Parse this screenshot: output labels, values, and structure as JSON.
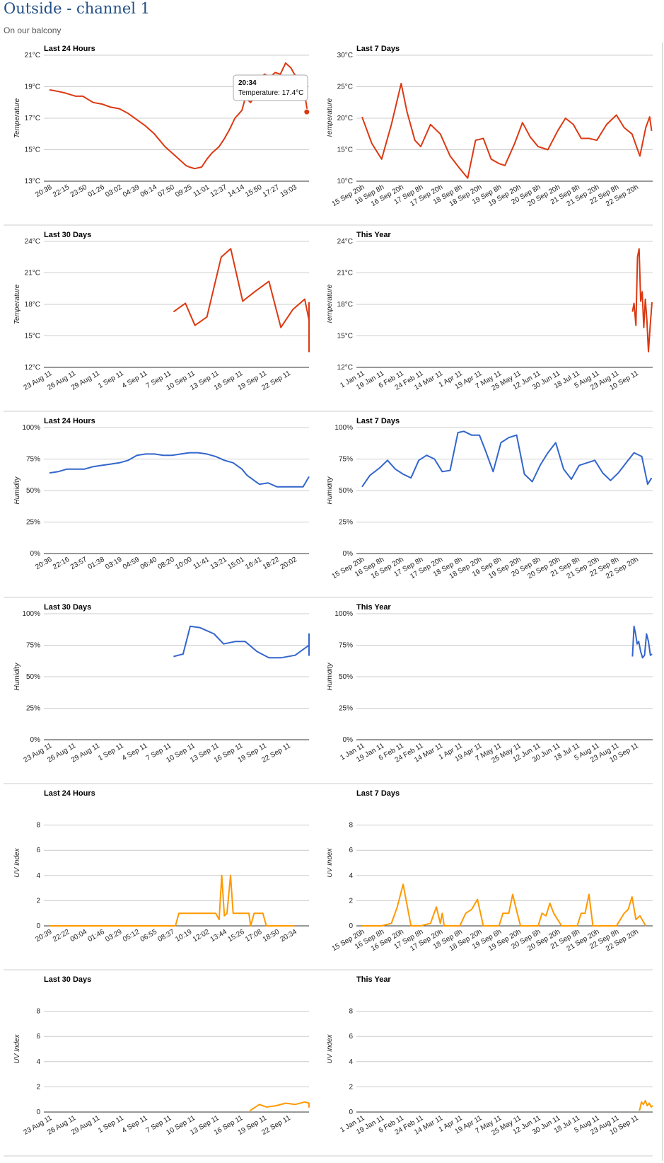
{
  "page": {
    "title": "Outside - channel 1",
    "subtitle": "On our balcony"
  },
  "colors": {
    "temperature": "#dc3912",
    "humidity": "#3366cc",
    "uv": "#ff9900",
    "grid": "#cccccc",
    "axis": "#333333",
    "divider": "#cccccc"
  },
  "chart_data": [
    {
      "type": "line",
      "title": "Last 24 Hours",
      "ylabel": "Temperature",
      "y_ticks": [
        "13°C",
        "15°C",
        "17°C",
        "19°C",
        "21°C"
      ],
      "ylim": [
        13,
        21
      ],
      "x_ticks": [
        "20:38",
        "22:15",
        "23:50",
        "01:26",
        "03:02",
        "04:39",
        "06:14",
        "07:50",
        "09:25",
        "11:01",
        "12:37",
        "14:14",
        "15:50",
        "17:27",
        "19:03"
      ],
      "x": [
        0,
        0.5,
        0.9,
        1.5,
        1.9,
        2.5,
        3,
        3.5,
        4,
        4.5,
        5,
        5.5,
        6,
        6.3,
        6.6,
        7,
        7.4,
        7.8,
        8,
        8.3,
        8.7,
        9,
        9.3,
        9.7,
        10,
        10.3,
        10.6,
        11,
        11.2,
        11.5,
        11.8,
        12,
        12.3,
        12.6,
        12.9,
        13.2,
        13.5,
        13.8,
        14,
        14.3,
        14.6,
        14.75
      ],
      "values": [
        18.8,
        18.7,
        18.6,
        18.4,
        18.4,
        18.0,
        17.9,
        17.7,
        17.6,
        17.3,
        16.9,
        16.5,
        16.0,
        15.6,
        15.2,
        14.8,
        14.4,
        14.0,
        13.9,
        13.8,
        13.9,
        14.4,
        14.8,
        15.2,
        15.7,
        16.3,
        17.0,
        17.5,
        18.3,
        18.0,
        18.5,
        19.5,
        19.8,
        19.6,
        19.9,
        19.8,
        20.5,
        20.2,
        19.8,
        19.5,
        18.5,
        17.4
      ],
      "tooltip": {
        "title": "20:34",
        "text": "Temperature: 17.4°C"
      }
    },
    {
      "type": "line",
      "title": "Last 7 Days",
      "ylabel": "Temperature",
      "y_ticks": [
        "10°C",
        "15°C",
        "20°C",
        "25°C",
        "30°C"
      ],
      "ylim": [
        10,
        30
      ],
      "x_ticks": [
        "15 Sep 20h",
        "16 Sep 8h",
        "16 Sep 20h",
        "17 Sep 8h",
        "17 Sep 20h",
        "18 Sep 8h",
        "18 Sep 20h",
        "19 Sep 8h",
        "19 Sep 20h",
        "20 Sep 8h",
        "20 Sep 20h",
        "21 Sep 8h",
        "21 Sep 20h",
        "22 Sep 8h",
        "22 Sep 20h"
      ],
      "x": [
        0,
        0.5,
        1,
        1.5,
        2,
        2.3,
        2.7,
        3,
        3.5,
        4,
        4.5,
        5,
        5.4,
        5.8,
        6.2,
        6.6,
        7,
        7.3,
        7.8,
        8.2,
        8.6,
        9,
        9.5,
        10,
        10.4,
        10.8,
        11.2,
        11.6,
        12,
        12.5,
        13,
        13.4,
        13.8,
        14.2,
        14.5,
        14.7,
        14.8
      ],
      "values": [
        20.2,
        16.0,
        13.5,
        19.0,
        25.5,
        21.0,
        16.5,
        15.5,
        19.0,
        17.5,
        14.0,
        12.0,
        10.5,
        16.5,
        16.8,
        13.5,
        12.8,
        12.5,
        16.0,
        19.3,
        17.0,
        15.5,
        15.0,
        18.0,
        20.0,
        19.0,
        16.8,
        16.8,
        16.5,
        19.0,
        20.5,
        18.5,
        17.5,
        14.0,
        18.5,
        20.2,
        18.0
      ]
    },
    {
      "type": "line",
      "title": "Last 30 Days",
      "ylabel": "Temperature",
      "y_ticks": [
        "12°C",
        "15°C",
        "18°C",
        "21°C",
        "24°C"
      ],
      "ylim": [
        12,
        24
      ],
      "x_ticks": [
        "23 Aug 11",
        "26 Aug 11",
        "29 Aug 11",
        "1 Sep 11",
        "4 Sep 11",
        "7 Sep 11",
        "10 Sep 11",
        "13 Sep 11",
        "16 Sep 11",
        "19 Sep 11",
        "22 Sep 11"
      ],
      "x": [
        5.2,
        5.7,
        6.1,
        6.6,
        7.2,
        7.6,
        8.1,
        8.6,
        9.2,
        9.7,
        10.2,
        10.7,
        11.2,
        11.7,
        12.2,
        12.7,
        13.2
      ],
      "values": [
        17.3,
        18.1,
        16.0,
        16.8,
        22.5,
        23.3,
        18.3,
        19.2,
        20.2,
        15.8,
        17.5,
        18.5,
        16.5,
        13.5,
        15.8,
        17.8,
        18.2
      ]
    },
    {
      "type": "line",
      "title": "This Year",
      "ylabel": "Temperature",
      "y_ticks": [
        "12°C",
        "15°C",
        "18°C",
        "21°C",
        "24°C"
      ],
      "ylim": [
        12,
        24
      ],
      "x_ticks": [
        "1 Jan 11",
        "19 Jan 11",
        "6 Feb 11",
        "24 Feb 11",
        "14 Mar 11",
        "1 Apr 11",
        "19 Apr 11",
        "7 May 11",
        "25 May 11",
        "12 Jun 11",
        "30 Jun 11",
        "18 Jul 11",
        "5 Aug 11",
        "23 Aug 11",
        "10 Sep 11"
      ],
      "x": [
        13.82,
        13.9,
        14.0,
        14.08,
        14.16,
        14.24,
        14.32,
        14.4,
        14.48,
        14.56,
        14.64,
        14.72,
        14.82
      ],
      "values": [
        17.3,
        18.1,
        16.0,
        22.5,
        23.3,
        18.3,
        19.2,
        15.8,
        18.5,
        16.5,
        13.5,
        15.8,
        18.2
      ]
    },
    {
      "type": "line",
      "title": "Last 24 Hours",
      "ylabel": "Humidity",
      "y_ticks": [
        "0%",
        "25%",
        "50%",
        "75%",
        "100%"
      ],
      "ylim": [
        0,
        100
      ],
      "x_ticks": [
        "20:36",
        "22:16",
        "23:57",
        "01:38",
        "03:19",
        "04:59",
        "06:40",
        "08:20",
        "10:00",
        "11:41",
        "13:21",
        "15:01",
        "16:41",
        "18:22",
        "20:02"
      ],
      "x": [
        0,
        0.5,
        1,
        1.5,
        2,
        2.5,
        3,
        3.5,
        4,
        4.5,
        5,
        5.5,
        6,
        6.5,
        7,
        7.5,
        8,
        8.5,
        9,
        9.5,
        10,
        10.5,
        11,
        11.3,
        11.7,
        12,
        12.5,
        13,
        13.5,
        14,
        14.5,
        14.9
      ],
      "values": [
        64,
        65,
        67,
        67,
        67,
        69,
        70,
        71,
        72,
        74,
        78,
        79,
        79,
        78,
        78,
        79,
        80,
        80,
        79,
        77,
        74,
        72,
        67,
        62,
        58,
        55,
        56,
        53,
        53,
        53,
        53,
        61
      ]
    },
    {
      "type": "line",
      "title": "Last 7 Days",
      "ylabel": "Humidity",
      "y_ticks": [
        "0%",
        "25%",
        "50%",
        "75%",
        "100%"
      ],
      "ylim": [
        0,
        100
      ],
      "x_ticks": [
        "15 Sep 20h",
        "16 Sep 8h",
        "16 Sep 20h",
        "17 Sep 8h",
        "17 Sep 20h",
        "18 Sep 8h",
        "18 Sep 20h",
        "19 Sep 8h",
        "19 Sep 20h",
        "20 Sep 8h",
        "20 Sep 20h",
        "21 Sep 8h",
        "21 Sep 20h",
        "22 Sep 8h",
        "22 Sep 20h"
      ],
      "x": [
        0,
        0.4,
        0.9,
        1.3,
        1.7,
        2.1,
        2.5,
        2.9,
        3.3,
        3.7,
        4.1,
        4.5,
        4.9,
        5.2,
        5.6,
        6.0,
        6.3,
        6.7,
        7.1,
        7.5,
        7.9,
        8.3,
        8.7,
        9.1,
        9.5,
        9.9,
        10.3,
        10.7,
        11.1,
        11.5,
        11.9,
        12.3,
        12.7,
        13.1,
        13.5,
        13.9,
        14.3,
        14.6,
        14.8
      ],
      "values": [
        53,
        62,
        68,
        74,
        67,
        63,
        60,
        74,
        78,
        75,
        65,
        66,
        96,
        97,
        94,
        94,
        82,
        65,
        88,
        92,
        94,
        63,
        57,
        70,
        80,
        88,
        67,
        59,
        70,
        72,
        74,
        64,
        58,
        64,
        72,
        80,
        77,
        55,
        60
      ]
    },
    {
      "type": "line",
      "title": "Last 30 Days",
      "ylabel": "Humidity",
      "y_ticks": [
        "0%",
        "25%",
        "50%",
        "75%",
        "100%"
      ],
      "ylim": [
        0,
        100
      ],
      "x_ticks": [
        "23 Aug 11",
        "26 Aug 11",
        "29 Aug 11",
        "1 Sep 11",
        "4 Sep 11",
        "7 Sep 11",
        "10 Sep 11",
        "13 Sep 11",
        "16 Sep 11",
        "19 Sep 11",
        "22 Sep 11"
      ],
      "x": [
        5.2,
        5.6,
        5.9,
        6.3,
        6.9,
        7.3,
        7.8,
        8.2,
        8.7,
        9.2,
        9.7,
        10.3,
        10.9,
        11.3,
        11.9,
        12.4,
        12.8,
        13.2
      ],
      "values": [
        66,
        68,
        90,
        89,
        84,
        76,
        78,
        78,
        70,
        65,
        65,
        67,
        75,
        84,
        78,
        70,
        67,
        68
      ]
    },
    {
      "type": "line",
      "title": "This Year",
      "ylabel": "Humidity",
      "y_ticks": [
        "0%",
        "25%",
        "50%",
        "75%",
        "100%"
      ],
      "ylim": [
        0,
        100
      ],
      "x_ticks": [
        "1 Jan 11",
        "19 Jan 11",
        "6 Feb 11",
        "24 Feb 11",
        "14 Mar 11",
        "1 Apr 11",
        "19 Apr 11",
        "7 May 11",
        "25 May 11",
        "12 Jun 11",
        "30 Jun 11",
        "18 Jul 11",
        "5 Aug 11",
        "23 Aug 11",
        "10 Sep 11"
      ],
      "x": [
        13.82,
        13.9,
        13.98,
        14.06,
        14.14,
        14.24,
        14.34,
        14.44,
        14.54,
        14.64,
        14.74,
        14.82
      ],
      "values": [
        66,
        90,
        84,
        76,
        78,
        70,
        65,
        67,
        84,
        78,
        67,
        68
      ]
    },
    {
      "type": "line",
      "title": "Last 24 Hours",
      "ylabel": "UV Index",
      "y_ticks": [
        "0",
        "2",
        "4",
        "6",
        "8"
      ],
      "ylim": [
        0,
        10
      ],
      "x_ticks": [
        "20:39",
        "22:22",
        "00:04",
        "01:46",
        "03:29",
        "05:12",
        "06:55",
        "08:37",
        "10:19",
        "12:02",
        "13:44",
        "15:26",
        "17:08",
        "18:50",
        "20:34"
      ],
      "x": [
        0,
        7.2,
        7.4,
        8.0,
        9.0,
        9.5,
        9.7,
        9.85,
        10.0,
        10.15,
        10.35,
        10.5,
        10.65,
        10.8,
        11.4,
        11.5,
        11.7,
        12.0,
        12.2,
        12.4,
        12.6,
        12.8,
        12.85,
        13.1,
        14.0
      ],
      "values": [
        0,
        0,
        1,
        1,
        1,
        1,
        0.5,
        4,
        0.8,
        1,
        4,
        1,
        1,
        1,
        1,
        0,
        1,
        1,
        1,
        0,
        0,
        0,
        0,
        0,
        0
      ]
    },
    {
      "type": "line",
      "title": "Last 7 Days",
      "ylabel": "UV Index",
      "y_ticks": [
        "0",
        "2",
        "4",
        "6",
        "8"
      ],
      "ylim": [
        0,
        10
      ],
      "x_ticks": [
        "15 Sep 20h",
        "16 Sep 8h",
        "16 Sep 20h",
        "17 Sep 8h",
        "17 Sep 20h",
        "18 Sep 8h",
        "18 Sep 20h",
        "19 Sep 8h",
        "19 Sep 20h",
        "20 Sep 8h",
        "20 Sep 20h",
        "21 Sep 8h",
        "21 Sep 20h",
        "22 Sep 8h",
        "22 Sep 20h"
      ],
      "x": [
        0,
        1.0,
        1.5,
        1.8,
        2.1,
        2.5,
        3.0,
        3.5,
        3.8,
        4.0,
        4.1,
        4.2,
        4.4,
        5.0,
        5.3,
        5.6,
        5.9,
        6.2,
        7.0,
        7.2,
        7.5,
        7.7,
        7.9,
        8.1,
        9.0,
        9.2,
        9.4,
        9.6,
        9.8,
        10.2,
        11.0,
        11.2,
        11.4,
        11.6,
        11.8,
        13.0,
        13.4,
        13.6,
        13.8,
        14.0,
        14.2,
        14.5
      ],
      "values": [
        0,
        0,
        0.2,
        1.5,
        3.3,
        0,
        0,
        0.2,
        1.5,
        0.2,
        1,
        0,
        0,
        0,
        1,
        1.3,
        2.1,
        0,
        0,
        1,
        1,
        2.5,
        1.2,
        0,
        0,
        1,
        0.8,
        1.8,
        1,
        0,
        0,
        1,
        1,
        2.5,
        0,
        0,
        1,
        1.3,
        2.3,
        0.5,
        0.8,
        0
      ]
    },
    {
      "type": "line",
      "title": "Last 30 Days",
      "ylabel": "UV Index",
      "y_ticks": [
        "0",
        "2",
        "4",
        "6",
        "8"
      ],
      "ylim": [
        0,
        10
      ],
      "x_ticks": [
        "23 Aug 11",
        "26 Aug 11",
        "29 Aug 11",
        "1 Sep 11",
        "4 Sep 11",
        "7 Sep 11",
        "10 Sep 11",
        "13 Sep 11",
        "16 Sep 11",
        "19 Sep 11",
        "22 Sep 11"
      ],
      "x": [
        8.4,
        8.8,
        9.1,
        9.5,
        9.9,
        10.3,
        10.7,
        11.1,
        11.5,
        11.9,
        12.3,
        12.7,
        13.2
      ],
      "values": [
        0.1,
        0.6,
        0.4,
        0.5,
        0.7,
        0.6,
        0.8,
        0.7,
        0.5,
        0.4,
        0.5,
        0.5,
        0.6
      ]
    },
    {
      "type": "line",
      "title": "This Year",
      "ylabel": "UV Index",
      "y_ticks": [
        "0",
        "2",
        "4",
        "6",
        "8"
      ],
      "ylim": [
        0,
        10
      ],
      "x_ticks": [
        "1 Jan 11",
        "19 Jan 11",
        "6 Feb 11",
        "24 Feb 11",
        "14 Mar 11",
        "1 Apr 11",
        "19 Apr 11",
        "7 May 11",
        "25 May 11",
        "12 Jun 11",
        "30 Jun 11",
        "18 Jul 11",
        "5 Aug 11",
        "23 Aug 11",
        "10 Sep 11"
      ],
      "x": [
        14.18,
        14.28,
        14.38,
        14.48,
        14.58,
        14.68,
        14.78,
        14.88
      ],
      "values": [
        0.1,
        0.8,
        0.6,
        0.9,
        0.5,
        0.7,
        0.4,
        0.5
      ]
    }
  ]
}
